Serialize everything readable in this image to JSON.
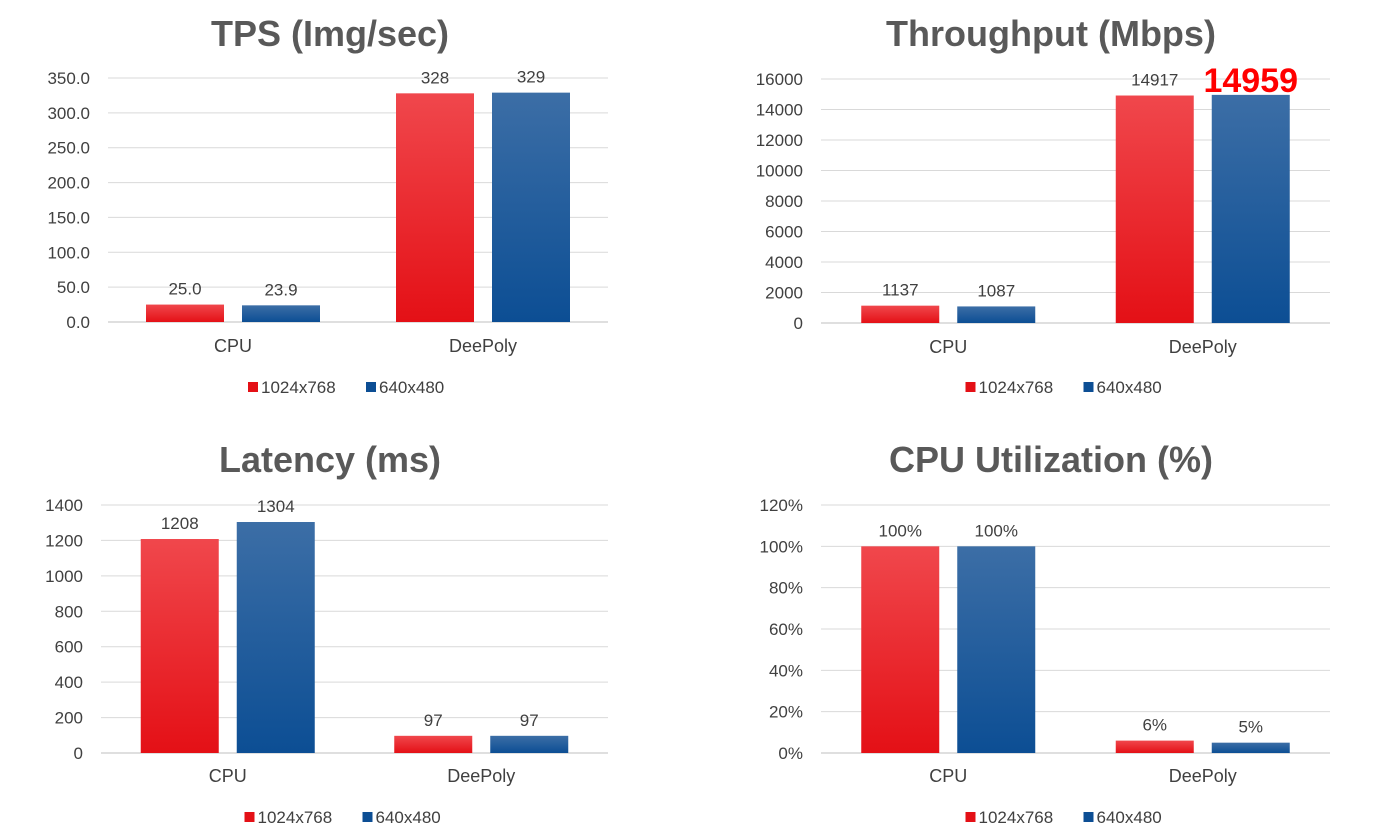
{
  "colors": {
    "series_a_top": "#f0474c",
    "series_a_bottom": "#e41016",
    "series_b_top": "#3c6ea6",
    "series_b_bottom": "#0c4e94",
    "title": "#595959",
    "axis_text": "#404040",
    "grid": "#d9d9d9",
    "highlight": "#ff0000"
  },
  "chart_data": [
    {
      "type": "bar",
      "title": "TPS (Img/sec)",
      "categories": [
        "CPU",
        "DeePoly"
      ],
      "series": [
        {
          "name": "1024x768",
          "values": [
            25.0,
            328
          ],
          "labels": [
            "25.0",
            "328"
          ]
        },
        {
          "name": "640x480",
          "values": [
            23.9,
            329
          ],
          "labels": [
            "23.9",
            "329"
          ]
        }
      ],
      "ylim": [
        0,
        350
      ],
      "yticks": [
        "0.0",
        "50.0",
        "100.0",
        "150.0",
        "200.0",
        "250.0",
        "300.0",
        "350.0"
      ],
      "legend_position": "bottom",
      "grid": true
    },
    {
      "type": "bar",
      "title": "Throughput (Mbps)",
      "categories": [
        "CPU",
        "DeePoly"
      ],
      "series": [
        {
          "name": "1024x768",
          "values": [
            1137,
            14917
          ],
          "labels": [
            "1137",
            "14917"
          ]
        },
        {
          "name": "640x480",
          "values": [
            1087,
            14959
          ],
          "labels": [
            "1087",
            "14959"
          ]
        }
      ],
      "highlighted_label": "14959",
      "ylim": [
        0,
        16000
      ],
      "yticks": [
        "0",
        "2000",
        "4000",
        "6000",
        "8000",
        "10000",
        "12000",
        "14000",
        "16000"
      ],
      "legend_position": "bottom",
      "grid": true
    },
    {
      "type": "bar",
      "title": "Latency (ms)",
      "categories": [
        "CPU",
        "DeePoly"
      ],
      "series": [
        {
          "name": "1024x768",
          "values": [
            1208,
            97
          ],
          "labels": [
            "1208",
            "97"
          ]
        },
        {
          "name": "640x480",
          "values": [
            1304,
            97
          ],
          "labels": [
            "1304",
            "97"
          ]
        }
      ],
      "ylim": [
        0,
        1400
      ],
      "yticks": [
        "0",
        "200",
        "400",
        "600",
        "800",
        "1000",
        "1200",
        "1400"
      ],
      "legend_position": "bottom",
      "grid": true
    },
    {
      "type": "bar",
      "title": "CPU Utilization (%)",
      "categories": [
        "CPU",
        "DeePoly"
      ],
      "series": [
        {
          "name": "1024x768",
          "values": [
            100,
            6
          ],
          "labels": [
            "100%",
            "6%"
          ]
        },
        {
          "name": "640x480",
          "values": [
            100,
            5
          ],
          "labels": [
            "100%",
            "5%"
          ]
        }
      ],
      "ylim": [
        0,
        120
      ],
      "yticks": [
        "0%",
        "20%",
        "40%",
        "60%",
        "80%",
        "100%",
        "120%"
      ],
      "legend_position": "bottom",
      "grid": true
    }
  ]
}
